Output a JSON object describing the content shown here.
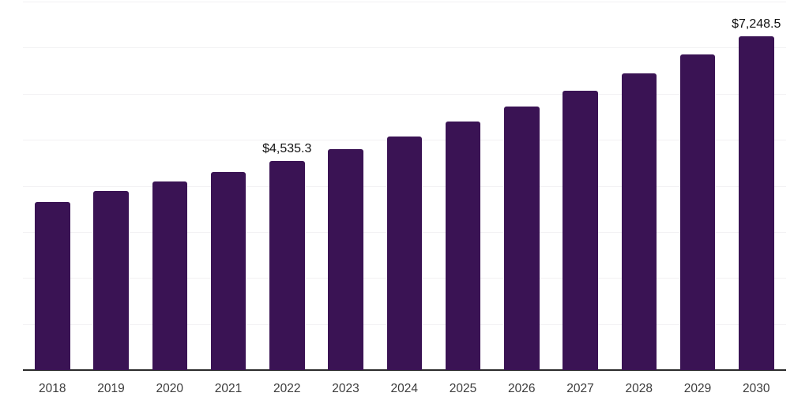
{
  "chart_data": {
    "type": "bar",
    "title": "",
    "xlabel": "",
    "ylabel": "",
    "categories": [
      "2018",
      "2019",
      "2020",
      "2021",
      "2022",
      "2023",
      "2024",
      "2025",
      "2026",
      "2027",
      "2028",
      "2029",
      "2030"
    ],
    "values": [
      3650,
      3890,
      4095,
      4295,
      4535.3,
      4790,
      5075,
      5395,
      5720,
      6070,
      6435,
      6845,
      7248.5
    ],
    "data_labels": {
      "2022": "$4,535.3",
      "2030": "$7,248.5"
    },
    "ylim": [
      0,
      8000
    ],
    "gridline_values": [
      1000,
      2000,
      3000,
      4000,
      5000,
      6000,
      7000,
      8000
    ],
    "grid": true,
    "legend": false,
    "colors": {
      "bar": "#3a1354",
      "gridline": "#f2f1f3",
      "axis": "#2b2b2b",
      "tick_label": "#3c3c3c",
      "data_label": "#111111",
      "background": "#ffffff"
    }
  }
}
